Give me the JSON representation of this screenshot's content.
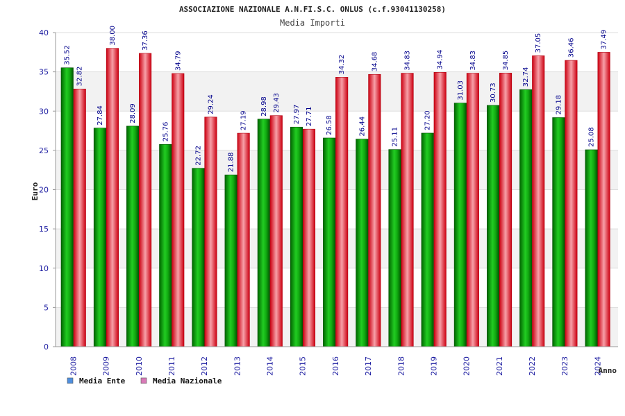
{
  "title": "ASSOCIAZIONE NAZIONALE A.N.FI.S.C. ONLUS (c.f.93041130258)",
  "subtitle": "Media Importi",
  "chart_data": {
    "type": "bar",
    "title": "Media Importi",
    "xlabel": "Anno",
    "ylabel": "Euro",
    "ylim": [
      0,
      40
    ],
    "y_ticks": [
      "0",
      "5",
      "10",
      "15",
      "20",
      "25",
      "30",
      "35",
      "40"
    ],
    "categories": [
      "2008",
      "2009",
      "2010",
      "2011",
      "2012",
      "2013",
      "2014",
      "2015",
      "2016",
      "2017",
      "2018",
      "2019",
      "2020",
      "2021",
      "2022",
      "2023",
      "2024"
    ],
    "series": [
      {
        "name": "Media Ente",
        "color": "#00a000",
        "legend_color": "#4f8fdf",
        "values": [
          35.52,
          27.84,
          28.09,
          25.76,
          22.72,
          21.88,
          28.98,
          27.97,
          26.58,
          26.44,
          25.11,
          27.2,
          31.03,
          30.73,
          32.74,
          29.18,
          25.08
        ],
        "labels": [
          "35.52",
          "27.84",
          "28.09",
          "25.76",
          "22.72",
          "21.88",
          "28.98",
          "27.97",
          "26.58",
          "26.44",
          "25.11",
          "27.20",
          "31.03",
          "30.73",
          "32.74",
          "29.18",
          "25.08"
        ]
      },
      {
        "name": "Media Nazionale",
        "color": "#e8102a",
        "legend_color": "#d97ab8",
        "values": [
          32.82,
          38.0,
          37.36,
          34.79,
          29.24,
          27.19,
          29.43,
          27.71,
          34.32,
          34.68,
          34.83,
          34.94,
          34.83,
          34.85,
          37.05,
          36.46,
          37.49
        ],
        "labels": [
          "32.82",
          "38.00",
          "37.36",
          "34.79",
          "29.24",
          "27.19",
          "29.43",
          "27.71",
          "34.32",
          "34.68",
          "34.83",
          "34.94",
          "34.83",
          "34.85",
          "37.05",
          "36.46",
          "37.49"
        ]
      }
    ],
    "grid": true,
    "legend": "bottom-left"
  }
}
